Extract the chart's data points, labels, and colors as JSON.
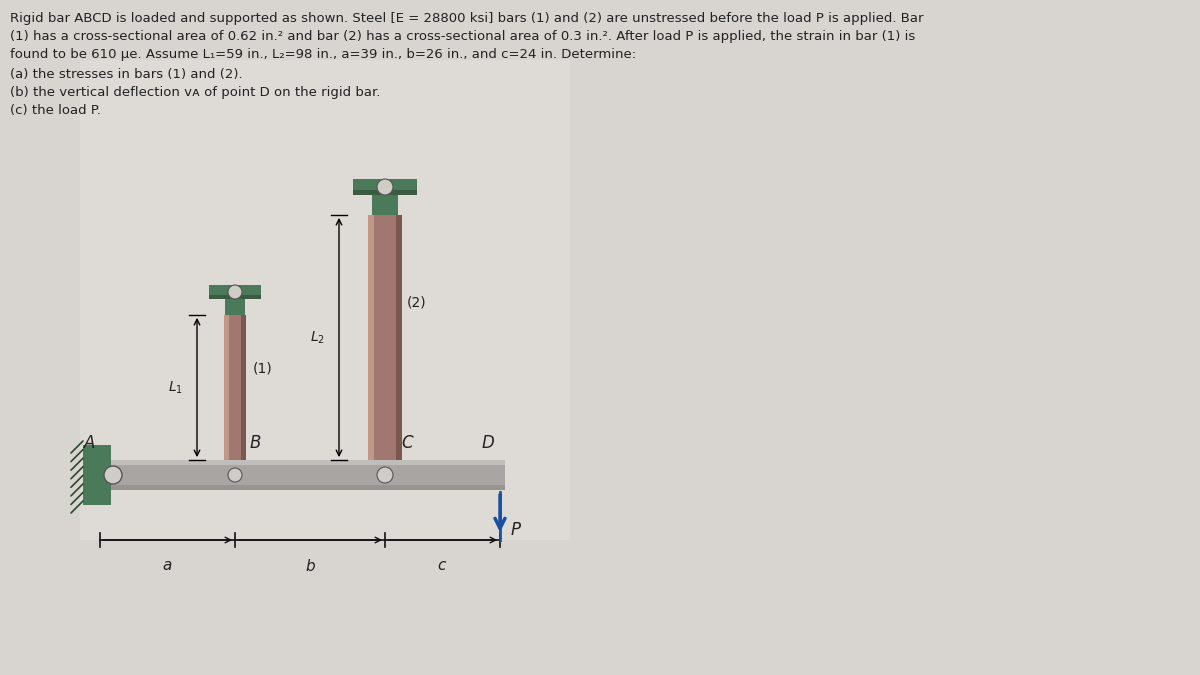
{
  "title_line1": "Rigid bar ABCD is loaded and supported as shown. Steel [E = 28800 ksi] bars (1) and (2) are unstressed before the load P is applied. Bar",
  "title_line2": "(1) has a cross-sectional area of 0.62 in.² and bar (2) has a cross-sectional area of 0.3 in.². After load P is applied, the strain in bar (1) is",
  "title_line3": "found to be 610 μe. Assume L₁=59 in., L₂=98 in., a=39 in., b=26 in., and c=24 in. Determine:",
  "q1": "(a) the stresses in bars (1) and (2).",
  "q2": "(b) the vertical deflection vᴀ of point D on the rigid bar.",
  "q3": "(c) the load P.",
  "fig_bg": "#d8d4d0",
  "diag_bg": "#dedad6",
  "bar_color": "#a07870",
  "bar_hi": "#c09888",
  "bar_sh": "#7a5850",
  "support_color": "#4a7a5a",
  "support_dark": "#3a5a42",
  "rigid_top": "#c0bebb",
  "rigid_mid": "#a8a5a2",
  "rigid_bot": "#989490",
  "wall_color": "#4a7a5a",
  "pin_color": "#d0ccc8",
  "arrow_color": "#1a50a0",
  "text_color": "#222222",
  "dim_color": "#111111"
}
